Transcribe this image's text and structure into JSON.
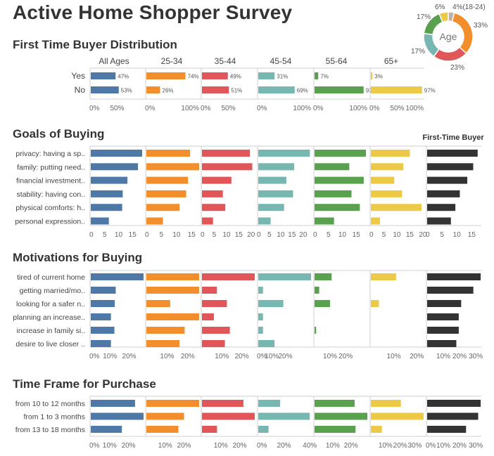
{
  "dashboard": {
    "title": "Active Home Shopper Survey",
    "sections": {
      "distribution": "First Time Buyer Distribution",
      "goals": "Goals of Buying",
      "motivations": "Motivations for Buying",
      "timeframe": "Time Frame for Purchase"
    },
    "first_time_buyer_label": "First-Time Buyer"
  },
  "colors": {
    "All Ages": "#4e79a7",
    "25-34": "#f28e2b",
    "35-44": "#e15759",
    "45-54": "#76b7b2",
    "55-64": "#59a14f",
    "65+": "#edc948",
    "18-24": "#bab0ac",
    "First-Time Buyer": "#333333",
    "axis": "#888888",
    "text": "#555555"
  },
  "chart_data": [
    {
      "id": "age_donut",
      "type": "pie",
      "center_label": "Age",
      "slices": [
        {
          "name": "18-24",
          "value": 4,
          "label": "4%(18-24)"
        },
        {
          "name": "25-34",
          "value": 33,
          "label": "33%"
        },
        {
          "name": "35-44",
          "value": 23,
          "label": "23%"
        },
        {
          "name": "45-54",
          "value": 17,
          "label": "17%"
        },
        {
          "name": "55-64",
          "value": 17,
          "label": "17%"
        },
        {
          "name": "65+",
          "value": 6,
          "label": "6%"
        }
      ]
    },
    {
      "id": "distribution",
      "type": "bar",
      "columns": [
        "All Ages",
        "25-34",
        "35-44",
        "45-54",
        "55-64",
        "65+"
      ],
      "categories": [
        "Yes",
        "No"
      ],
      "series": [
        {
          "name": "All Ages",
          "values": [
            47,
            53
          ],
          "labels": [
            "47%",
            "53%"
          ]
        },
        {
          "name": "25-34",
          "values": [
            74,
            26
          ],
          "labels": [
            "74%",
            "26%"
          ]
        },
        {
          "name": "35-44",
          "values": [
            49,
            51
          ],
          "labels": [
            "49%",
            "51%"
          ]
        },
        {
          "name": "45-54",
          "values": [
            31,
            69
          ],
          "labels": [
            "31%",
            "69%"
          ]
        },
        {
          "name": "55-64",
          "values": [
            7,
            93
          ],
          "labels": [
            "7%",
            "93%"
          ]
        },
        {
          "name": "65+",
          "values": [
            3,
            97
          ],
          "labels": [
            "3%",
            "97%"
          ]
        }
      ],
      "xlim": [
        0,
        100
      ],
      "ticks": [
        [
          "0%",
          "50%"
        ],
        [
          "0%",
          "100%"
        ],
        [
          "0%",
          "50%"
        ],
        [
          "0%",
          "100%"
        ],
        [
          "0%",
          "100%"
        ],
        [
          "0%",
          "50%",
          "100%"
        ]
      ]
    },
    {
      "id": "goals",
      "type": "bar",
      "categories": [
        "privacy: having a sp..",
        "family: putting need..",
        "financial investment..",
        "stability: having con..",
        "physical comforts: h..",
        "personal expression.."
      ],
      "series": [
        {
          "name": "All Ages",
          "values": [
            18.5,
            17,
            13.2,
            11.5,
            11.3,
            6.5
          ],
          "xlim": [
            0,
            19
          ],
          "ticks": [
            "0",
            "5",
            "10",
            "15"
          ]
        },
        {
          "name": "25-34",
          "values": [
            14.5,
            17.5,
            13.8,
            13.2,
            11,
            5.5
          ],
          "xlim": [
            0,
            17.5
          ],
          "ticks": [
            "0",
            "5",
            "10",
            "15"
          ]
        },
        {
          "name": "35-44",
          "values": [
            19.5,
            20.5,
            12,
            8.5,
            9.5,
            4.5
          ],
          "xlim": [
            0,
            21.5
          ],
          "ticks": [
            "0",
            "5",
            "10",
            "15",
            "20"
          ]
        },
        {
          "name": "45-54",
          "values": [
            23,
            16,
            12.5,
            15.5,
            11.5,
            5.5
          ],
          "xlim": [
            0,
            23.5
          ],
          "ticks": [
            "0",
            "5",
            "10",
            "15",
            "20"
          ]
        },
        {
          "name": "55-64",
          "values": [
            18.5,
            12.5,
            17.7,
            13.3,
            16.3,
            7
          ],
          "xlim": [
            0,
            19
          ],
          "ticks": [
            "0",
            "5",
            "10",
            "15"
          ]
        },
        {
          "name": "65+",
          "values": [
            15,
            12.5,
            9,
            12,
            19.5,
            3.5
          ],
          "xlim": [
            0,
            20.3
          ],
          "ticks": [
            "0",
            "5",
            "10",
            "15",
            "20"
          ]
        },
        {
          "name": "First-Time Buyer",
          "values": [
            17,
            15.5,
            13.5,
            11,
            9.5,
            8
          ],
          "xlim": [
            0,
            18
          ],
          "ticks": [
            "0",
            "5",
            "10",
            "15"
          ]
        }
      ]
    },
    {
      "id": "motivations",
      "type": "bar",
      "categories": [
        "tired of current home",
        "getting married/mo..",
        "looking for a safer n..",
        "planning an increase..",
        "increase in family si..",
        "desire to live closer .."
      ],
      "series": [
        {
          "name": "All Ages",
          "values": [
            27.5,
            13,
            12.5,
            10.5,
            12.3,
            10.5
          ],
          "xlim": [
            0,
            27.5
          ],
          "ticks": [
            "0%",
            "10%",
            "20%"
          ]
        },
        {
          "name": "25-34",
          "values": [
            25.5,
            25.5,
            11.5,
            25.5,
            18.5,
            16
          ],
          "xlim": [
            0,
            25.5
          ],
          "ticks": [
            "10%",
            "20%"
          ]
        },
        {
          "name": "35-44",
          "values": [
            26.5,
            7.5,
            12.5,
            6,
            14,
            11.5
          ],
          "xlim": [
            0,
            26.5
          ],
          "ticks": [
            "10%",
            "20%"
          ]
        },
        {
          "name": "45-54",
          "values": [
            39,
            3.5,
            18.5,
            3.5,
            3.5,
            12
          ],
          "xlim": [
            0,
            39
          ],
          "ticks": [
            "0%",
            "10%",
            "20%"
          ]
        },
        {
          "name": "55-64",
          "values": [
            11,
            3,
            10,
            0,
            1,
            0
          ],
          "xlim": [
            0,
            34
          ],
          "ticks": [
            "10%",
            "20%"
          ]
        },
        {
          "name": "65+",
          "values": [
            11,
            0,
            3.5,
            0,
            0,
            0
          ],
          "xlim": [
            0,
            23
          ],
          "ticks": [
            "10%",
            "20%"
          ]
        },
        {
          "name": "First-Time Buyer",
          "values": [
            33,
            28.5,
            21,
            19.5,
            19.5,
            18
          ],
          "xlim": [
            0,
            33
          ],
          "ticks": [
            "10%",
            "20%",
            "30%"
          ]
        }
      ]
    },
    {
      "id": "timeframe",
      "type": "bar",
      "categories": [
        "from 10 to 12 months",
        "from 1 to 3 months",
        "from 13 to 18 months"
      ],
      "series": [
        {
          "name": "All Ages",
          "values": [
            23.5,
            28,
            16.5
          ],
          "xlim": [
            0,
            28
          ],
          "ticks": [
            "0%",
            "10%",
            "20%"
          ]
        },
        {
          "name": "25-34",
          "values": [
            28,
            20,
            17
          ],
          "xlim": [
            0,
            28
          ],
          "ticks": [
            "10%",
            "20%"
          ]
        },
        {
          "name": "35-44",
          "values": [
            22,
            28,
            8
          ],
          "xlim": [
            0,
            28
          ],
          "ticks": [
            "10%",
            "20%"
          ]
        },
        {
          "name": "45-54",
          "values": [
            17,
            40,
            8
          ],
          "xlim": [
            0,
            41
          ],
          "ticks": [
            "0%",
            "20%",
            "40%"
          ]
        },
        {
          "name": "55-64",
          "values": [
            22,
            29,
            22.5
          ],
          "xlim": [
            0,
            29
          ],
          "ticks": [
            "10%",
            "20%"
          ]
        },
        {
          "name": "65+",
          "values": [
            20.5,
            36,
            7.5
          ],
          "xlim": [
            0,
            36
          ],
          "ticks": [
            "10%",
            "20%",
            "30%"
          ]
        },
        {
          "name": "First-Time Buyer",
          "values": [
            33,
            31.5,
            24
          ],
          "xlim": [
            0,
            33
          ],
          "ticks": [
            "0%",
            "10%",
            "20%",
            "30%"
          ]
        }
      ]
    }
  ]
}
